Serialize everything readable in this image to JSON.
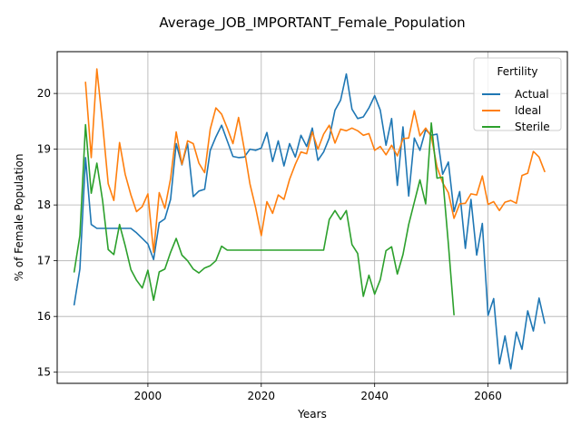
{
  "chart_data": {
    "type": "line",
    "title": "Average_JOB_IMPORTANT_Female_Population",
    "xlabel": "Years",
    "ylabel": "% of Female Population",
    "xlim": [
      1984,
      2074
    ],
    "ylim": [
      14.8,
      20.75
    ],
    "x_ticks": [
      2000,
      2020,
      2040,
      2060
    ],
    "y_ticks": [
      15,
      16,
      17,
      18,
      19,
      20
    ],
    "grid": true,
    "legend": {
      "title": "Fertility",
      "position": "top-right"
    },
    "series": [
      {
        "name": "Actual",
        "color": "#1f77b4",
        "x": [
          1987,
          1988,
          1989,
          1990,
          1991,
          1992,
          1993,
          1994,
          1995,
          1996,
          1997,
          1998,
          1999,
          2000,
          2001,
          2002,
          2003,
          2004,
          2005,
          2006,
          2007,
          2008,
          2009,
          2010,
          2011,
          2012,
          2013,
          2014,
          2015,
          2016,
          2017,
          2018,
          2019,
          2020,
          2021,
          2022,
          2023,
          2024,
          2025,
          2026,
          2027,
          2028,
          2029,
          2030,
          2031,
          2032,
          2033,
          2034,
          2035,
          2036,
          2037,
          2038,
          2039,
          2040,
          2041,
          2042,
          2043,
          2044,
          2045,
          2046,
          2047,
          2048,
          2049,
          2050,
          2051,
          2052,
          2053,
          2054,
          2055,
          2056,
          2057,
          2058,
          2059,
          2060,
          2061,
          2062,
          2063,
          2064,
          2065,
          2066,
          2067,
          2068,
          2069,
          2070
        ],
        "values": [
          16.21,
          16.85,
          18.85,
          17.65,
          17.58,
          17.58,
          17.58,
          17.58,
          17.58,
          17.58,
          17.58,
          17.5,
          17.4,
          17.3,
          17.02,
          17.68,
          17.75,
          18.1,
          19.1,
          18.72,
          19.1,
          18.15,
          18.25,
          18.28,
          18.98,
          19.22,
          19.43,
          19.15,
          18.87,
          18.85,
          18.86,
          19.0,
          18.98,
          19.02,
          19.3,
          18.78,
          19.15,
          18.7,
          19.1,
          18.86,
          19.25,
          19.05,
          19.38,
          18.8,
          18.95,
          19.2,
          19.7,
          19.88,
          20.35,
          19.72,
          19.55,
          19.58,
          19.74,
          19.96,
          19.7,
          19.07,
          19.55,
          18.35,
          19.4,
          18.16,
          19.2,
          18.98,
          19.35,
          19.25,
          19.27,
          18.55,
          18.77,
          17.88,
          18.24,
          17.22,
          18.1,
          17.1,
          17.67,
          16.02,
          16.32,
          15.15,
          15.65,
          15.06,
          15.72,
          15.41,
          16.1,
          15.74,
          16.33,
          15.88
        ]
      },
      {
        "name": "Ideal",
        "color": "#ff7f0e",
        "x": [
          1989,
          1990,
          1991,
          1992,
          1993,
          1994,
          1995,
          1996,
          1997,
          1998,
          1999,
          2000,
          2001,
          2002,
          2003,
          2004,
          2005,
          2006,
          2007,
          2008,
          2009,
          2010,
          2011,
          2012,
          2013,
          2014,
          2015,
          2016,
          2017,
          2018,
          2019,
          2020,
          2021,
          2022,
          2023,
          2024,
          2025,
          2026,
          2027,
          2028,
          2029,
          2030,
          2031,
          2032,
          2033,
          2034,
          2035,
          2036,
          2037,
          2038,
          2039,
          2040,
          2041,
          2042,
          2043,
          2044,
          2045,
          2046,
          2047,
          2048,
          2049,
          2050,
          2051,
          2052,
          2053,
          2054,
          2055,
          2056,
          2057,
          2058,
          2059,
          2060,
          2061,
          2062,
          2063,
          2064,
          2065,
          2066,
          2067,
          2068,
          2069,
          2070
        ],
        "values": [
          20.2,
          18.85,
          20.44,
          19.46,
          18.38,
          18.08,
          19.12,
          18.55,
          18.18,
          17.88,
          17.97,
          18.2,
          17.15,
          18.22,
          17.94,
          18.47,
          19.31,
          18.73,
          19.15,
          19.1,
          18.75,
          18.58,
          19.36,
          19.74,
          19.63,
          19.38,
          19.1,
          19.57,
          19.0,
          18.38,
          17.95,
          17.45,
          18.06,
          17.85,
          18.18,
          18.1,
          18.46,
          18.73,
          18.95,
          18.92,
          19.31,
          19.0,
          19.27,
          19.43,
          19.11,
          19.36,
          19.33,
          19.38,
          19.33,
          19.25,
          19.28,
          18.98,
          19.05,
          18.9,
          19.07,
          18.88,
          19.19,
          19.2,
          19.69,
          19.24,
          19.38,
          19.23,
          18.68,
          18.4,
          18.22,
          17.76,
          18.02,
          18.03,
          18.2,
          18.18,
          18.52,
          18.01,
          18.06,
          17.9,
          18.05,
          18.08,
          18.03,
          18.53,
          18.57,
          18.96,
          18.86,
          18.6
        ]
      },
      {
        "name": "Sterile",
        "color": "#2ca02c",
        "x": [
          1987,
          1988,
          1989,
          1990,
          1991,
          1992,
          1993,
          1994,
          1995,
          1996,
          1997,
          1998,
          1999,
          2000,
          2001,
          2002,
          2003,
          2004,
          2005,
          2006,
          2007,
          2008,
          2009,
          2010,
          2011,
          2012,
          2013,
          2014,
          2015,
          2016,
          2017,
          2018,
          2019,
          2020,
          2021,
          2022,
          2023,
          2024,
          2025,
          2026,
          2027,
          2028,
          2029,
          2030,
          2031,
          2032,
          2033,
          2034,
          2035,
          2036,
          2037,
          2038,
          2039,
          2040,
          2041,
          2042,
          2043,
          2044,
          2045,
          2046,
          2047,
          2048,
          2049,
          2050,
          2051,
          2052,
          2053,
          2054
        ],
        "values": [
          16.8,
          17.45,
          19.44,
          18.21,
          18.75,
          18.08,
          17.2,
          17.11,
          17.65,
          17.27,
          16.84,
          16.65,
          16.51,
          16.83,
          16.29,
          16.8,
          16.85,
          17.15,
          17.4,
          17.1,
          17.0,
          16.85,
          16.78,
          16.87,
          16.91,
          17.0,
          17.26,
          17.19,
          17.19,
          17.19,
          17.19,
          17.19,
          17.19,
          17.19,
          17.19,
          17.19,
          17.19,
          17.19,
          17.19,
          17.19,
          17.19,
          17.19,
          17.19,
          17.19,
          17.19,
          17.74,
          17.9,
          17.74,
          17.9,
          17.29,
          17.13,
          16.36,
          16.74,
          16.4,
          16.66,
          17.18,
          17.25,
          16.76,
          17.11,
          17.65,
          18.05,
          18.45,
          18.02,
          19.47,
          18.48,
          18.5,
          17.3,
          16.03
        ]
      }
    ]
  }
}
